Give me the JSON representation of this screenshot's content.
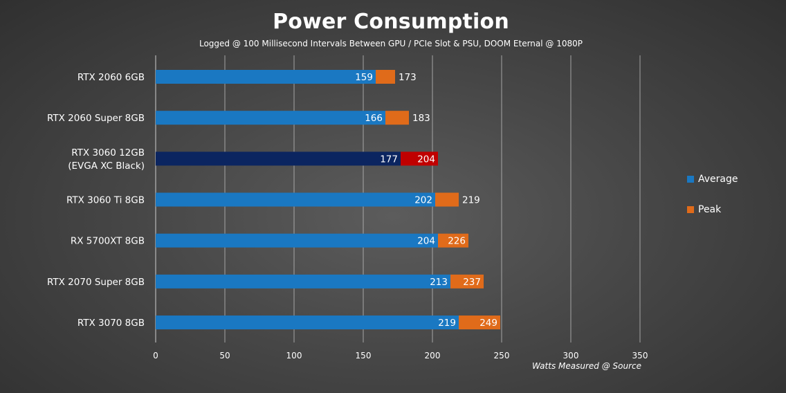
{
  "chart_data": {
    "type": "bar",
    "orientation": "horizontal",
    "title": "Power Consumption",
    "subtitle": "Logged @ 100 Millisecond Intervals Between GPU / PCIe Slot & PSU, DOOM Eternal @ 1080P",
    "xlabel": "Watts Measured @ Source",
    "ylabel": "",
    "xlim": [
      0,
      350
    ],
    "xticks": [
      "0",
      "50",
      "100",
      "150",
      "200",
      "250",
      "300",
      "350"
    ],
    "grid": true,
    "legend_position": "right",
    "categories": [
      [
        "RTX 2060 6GB"
      ],
      [
        "RTX 2060 Super 8GB"
      ],
      [
        "RTX 3060 12GB",
        "(EVGA XC Black)"
      ],
      [
        "RTX 3060 Ti 8GB"
      ],
      [
        "RX 5700XT 8GB"
      ],
      [
        "RTX 2070 Super 8GB"
      ],
      [
        "RTX 3070 8GB"
      ]
    ],
    "highlight_index": 2,
    "series": [
      {
        "name": "Average",
        "color": "#1a78c2",
        "highlight_color": "#0b2560",
        "values": [
          159,
          166,
          177,
          202,
          204,
          213,
          219
        ],
        "labels": [
          "159",
          "166",
          "177",
          "202",
          "204",
          "213",
          "219"
        ]
      },
      {
        "name": "Peak",
        "color": "#e06b1a",
        "highlight_color": "#c00000",
        "values": [
          173,
          183,
          204,
          219,
          226,
          237,
          249
        ],
        "labels": [
          "173",
          "183",
          "204",
          "219",
          "226",
          "237",
          "249"
        ]
      }
    ]
  }
}
